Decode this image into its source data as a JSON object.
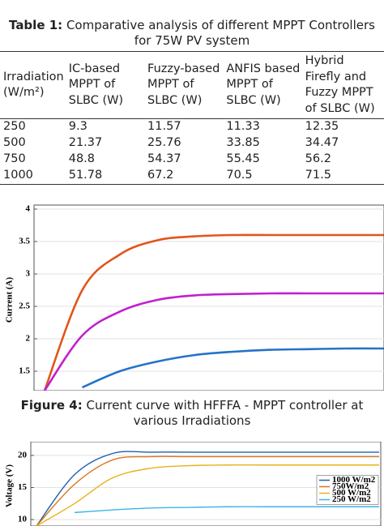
{
  "table": {
    "caption": {
      "label": "Table 1:",
      "text": "Comparative analysis of different MPPT Controllers for 75W PV system"
    },
    "header": [
      "Irradiation (W/m²)",
      "IC-based MPPT of SLBC (W)",
      "Fuzzy-based MPPT of SLBC (W)",
      "ANFIS based MPPT of SLBC (W)",
      "Hybrid Firefly and Fuzzy MPPT of SLBC (W)"
    ],
    "rows": [
      [
        "250",
        "9.3",
        "11.57",
        "11.33",
        "12.35"
      ],
      [
        "500",
        "21.37",
        "25.76",
        "33.85",
        "34.47"
      ],
      [
        "750",
        "48.8",
        "54.37",
        "55.45",
        "56.2"
      ],
      [
        "1000",
        "51.78",
        "67.2",
        "70.5",
        "71.5"
      ]
    ]
  },
  "figure4": {
    "label": "Figure 4:",
    "text": "Current curve with HFFFA - MPPT controller at various Irradiations"
  },
  "chart_data": [
    {
      "type": "line",
      "ylabel": "Current (A)",
      "ylim": [
        1.2,
        4
      ],
      "yticks": [
        1.5,
        2,
        2.5,
        3,
        3.5,
        4
      ],
      "grid": true,
      "series": [
        {
          "color": "#e0561b",
          "values": [
            1.2,
            2.75,
            3.3,
            3.52,
            3.58,
            3.6,
            3.6,
            3.6,
            3.6,
            3.6
          ]
        },
        {
          "color": "#c21fd0",
          "values": [
            1.2,
            2.05,
            2.42,
            2.6,
            2.67,
            2.69,
            2.7,
            2.7,
            2.7,
            2.7
          ]
        },
        {
          "color": "#2473c9",
          "values": [
            null,
            1.25,
            1.5,
            1.65,
            1.75,
            1.8,
            1.83,
            1.84,
            1.85,
            1.85
          ]
        }
      ]
    },
    {
      "type": "line",
      "ylabel": "Voltage (V)",
      "ylim": [
        9,
        21.5
      ],
      "yticks": [
        10,
        15,
        20
      ],
      "grid": true,
      "legend": "center right",
      "series": [
        {
          "name": "1000 W/m2",
          "color": "#1f5fae",
          "values": [
            9,
            17,
            20.3,
            20.5,
            20.5,
            20.5,
            20.5,
            20.5,
            20.5,
            20.5
          ]
        },
        {
          "name": "750W/m2",
          "color": "#d9731c",
          "values": [
            9,
            15.5,
            19.3,
            19.8,
            19.8,
            19.8,
            19.8,
            19.8,
            19.8,
            19.8
          ]
        },
        {
          "name": "500 W/m2",
          "color": "#e9b21a",
          "values": [
            9,
            12.5,
            16.5,
            18,
            18.4,
            18.5,
            18.5,
            18.5,
            18.5,
            18.5
          ]
        },
        {
          "name": "250 W/m2",
          "color": "#3fb4e6",
          "values": [
            null,
            11.1,
            11.5,
            11.8,
            11.9,
            12,
            12,
            12,
            12,
            12
          ]
        }
      ]
    }
  ]
}
